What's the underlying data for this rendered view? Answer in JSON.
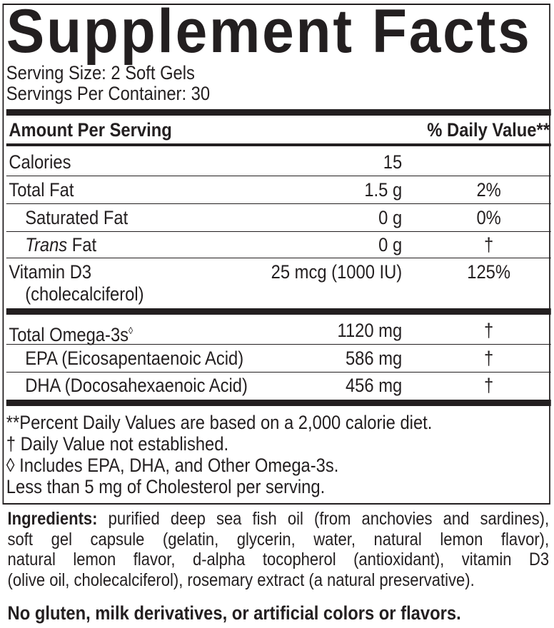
{
  "title": "Supplement Facts",
  "serving_size": "Serving Size: 2 Soft Gels",
  "servings_per_container": "Servings Per Container: 30",
  "header": {
    "amount": "Amount Per Serving",
    "dv": "% Daily Value**"
  },
  "rows": [
    {
      "name": "Calories",
      "amount": "15",
      "dv": ""
    },
    {
      "name": "Total Fat",
      "amount": "1.5 g",
      "dv": "2%"
    },
    {
      "name": "Saturated Fat",
      "amount": "0 g",
      "dv": "0%"
    },
    {
      "name_italic": "Trans",
      "name": " Fat",
      "amount": "0 g",
      "dv": "†"
    },
    {
      "name": "Vitamin D3",
      "name2": "(cholecalciferol)",
      "amount": "25 mcg (1000 IU)",
      "dv": "125%"
    },
    {
      "name": "Total Omega-3s",
      "mark": "◊",
      "amount": "1120 mg",
      "dv": "†"
    },
    {
      "name": "EPA (Eicosapentaenoic Acid)",
      "amount": "586 mg",
      "dv": "†"
    },
    {
      "name": "DHA (Docosahexaenoic Acid)",
      "amount": "456 mg",
      "dv": "†"
    }
  ],
  "footnotes": [
    "**Percent Daily Values are based on a 2,000 calorie diet.",
    "† Daily Value not established.",
    "◊ Includes EPA, DHA, and Other Omega-3s.",
    "Less than 5 mg of Cholesterol per serving."
  ],
  "ingredients": {
    "label": "Ingredients:",
    "lines": [
      " purified deep sea fish oil (from anchovies and sardines),",
      "soft gel capsule (gelatin, glycerin, water, natural lemon flavor),",
      "natural lemon flavor, d-alpha tocopherol (antioxidant), vitamin D3",
      "(olive oil, cholecalciferol), rosemary extract (a natural preservative)."
    ]
  },
  "allergen_note": "No gluten, milk derivatives, or artificial colors or flavors."
}
